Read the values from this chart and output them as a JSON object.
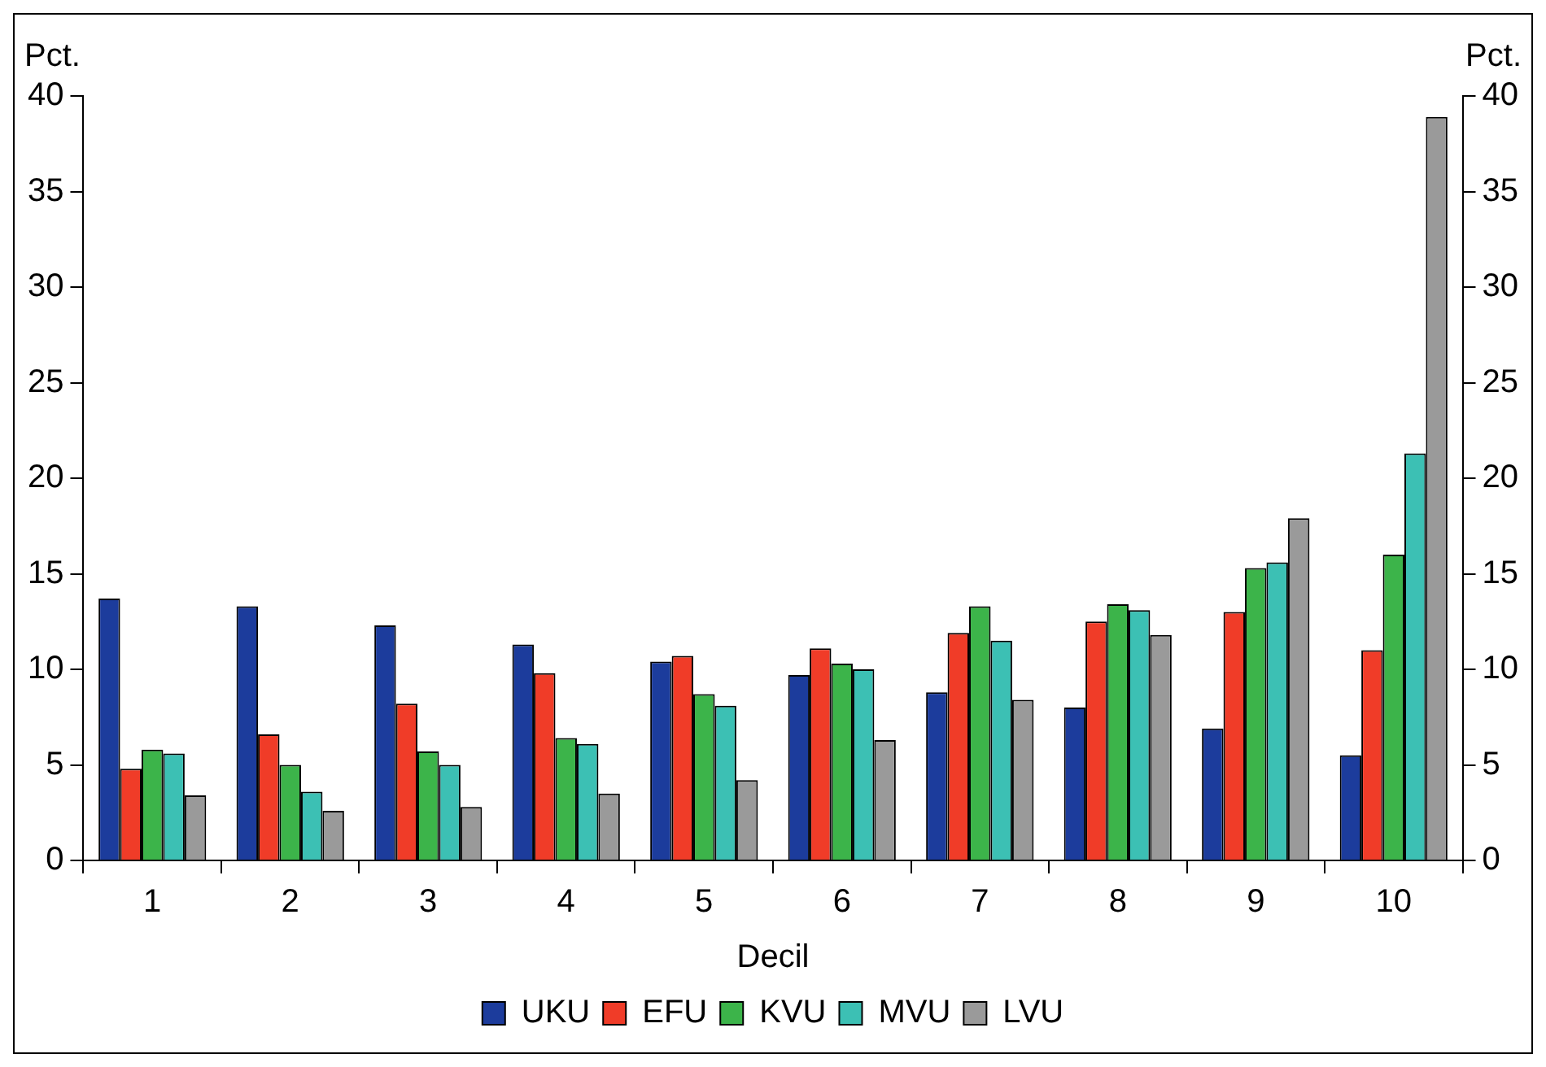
{
  "chart_data": {
    "type": "bar",
    "xlabel": "Decil",
    "ylabel": "Pct.",
    "y2label": "Pct.",
    "categories": [
      "1",
      "2",
      "3",
      "4",
      "5",
      "6",
      "7",
      "8",
      "9",
      "10"
    ],
    "series": [
      {
        "name": "UKU",
        "color": "#1c3c9c",
        "values": [
          13.7,
          13.3,
          12.3,
          11.3,
          10.4,
          9.7,
          8.8,
          8.0,
          6.9,
          5.5
        ]
      },
      {
        "name": "EFU",
        "color": "#f03c28",
        "values": [
          4.8,
          6.6,
          8.2,
          9.8,
          10.7,
          11.1,
          11.9,
          12.5,
          13.0,
          11.0
        ]
      },
      {
        "name": "KVU",
        "color": "#3cb44a",
        "values": [
          5.8,
          5.0,
          5.7,
          6.4,
          8.7,
          10.3,
          13.3,
          13.4,
          15.3,
          16.0
        ]
      },
      {
        "name": "MVU",
        "color": "#3cc0b4",
        "values": [
          5.6,
          3.6,
          5.0,
          6.1,
          8.1,
          10.0,
          11.5,
          13.1,
          15.6,
          21.3
        ]
      },
      {
        "name": "LVU",
        "color": "#9a9a9a",
        "values": [
          3.4,
          2.6,
          2.8,
          3.5,
          4.2,
          6.3,
          8.4,
          11.8,
          17.9,
          38.9
        ]
      }
    ],
    "ylim": [
      0,
      40
    ],
    "yticks": [
      0,
      5,
      10,
      15,
      20,
      25,
      30,
      35,
      40
    ],
    "y2lim": [
      0,
      40
    ],
    "y2ticks": [
      0,
      5,
      10,
      15,
      20,
      25,
      30,
      35,
      40
    ],
    "grid": false,
    "legend": "bottom"
  }
}
